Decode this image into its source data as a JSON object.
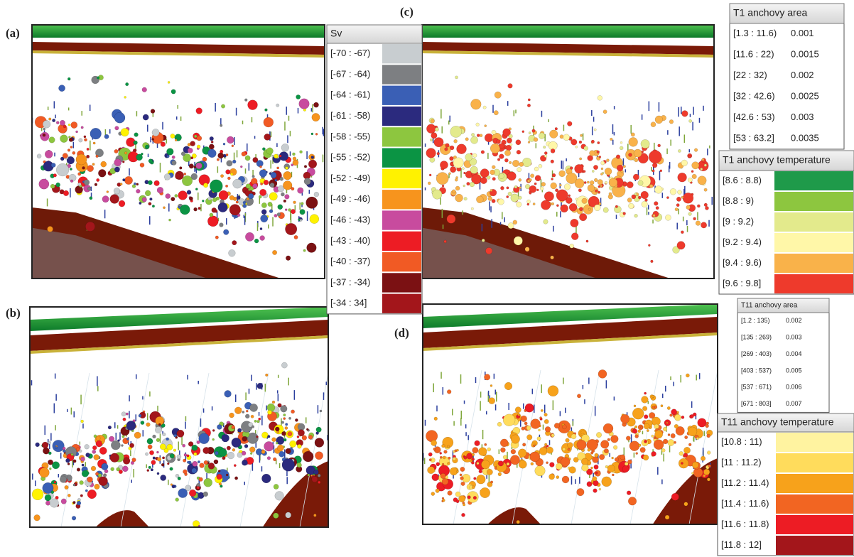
{
  "panel_labels": [
    "(a)",
    "(b)",
    "(c)",
    "(d)"
  ],
  "sv_legend": {
    "title": "Sv",
    "rows": [
      {
        "label": "[-70 : -67)",
        "color": "#c8cdd0"
      },
      {
        "label": "[-67 : -64)",
        "color": "#7d7f82"
      },
      {
        "label": "[-64 : -61)",
        "color": "#3a5fb5"
      },
      {
        "label": "[-61 : -58)",
        "color": "#2b2a7e"
      },
      {
        "label": "[-58 : -55)",
        "color": "#8dc63f"
      },
      {
        "label": "[-55 : -52)",
        "color": "#0b9444"
      },
      {
        "label": "[-52 : -49)",
        "color": "#fff200"
      },
      {
        "label": "[-49 : -46)",
        "color": "#f7941d"
      },
      {
        "label": "[-46 : -43)",
        "color": "#c84b9e"
      },
      {
        "label": "[-43 : -40)",
        "color": "#ed1c24"
      },
      {
        "label": "[-40 : -37)",
        "color": "#f15a24"
      },
      {
        "label": "[-37 : -34)",
        "color": "#7b1113"
      },
      {
        "label": "[-34 : 34]",
        "color": "#a3161b"
      }
    ]
  },
  "t1_area": {
    "title": "T1 anchovy area",
    "rows": [
      {
        "range": "[1.3 : 11.6)",
        "value": 0.001
      },
      {
        "range": "[11.6 : 22)",
        "value": 0.0015
      },
      {
        "range": "[22 : 32)",
        "value": 0.002
      },
      {
        "range": "[32 : 42.6)",
        "value": 0.0025
      },
      {
        "range": "[42.6 : 53)",
        "value": 0.003
      },
      {
        "range": "[53 : 63.2]",
        "value": 0.0035
      }
    ]
  },
  "t1_temperature": {
    "title": "T1 anchovy temperature",
    "rows": [
      {
        "label": "[8.6 : 8.8)",
        "color": "#1f9a4a"
      },
      {
        "label": "[8.8 : 9)",
        "color": "#8dc63f"
      },
      {
        "label": "[9 : 9.2)",
        "color": "#e3ea8c"
      },
      {
        "label": "[9.2 : 9.4)",
        "color": "#fff7a8"
      },
      {
        "label": "[9.4 : 9.6)",
        "color": "#f9b24a"
      },
      {
        "label": "[9.6 : 9.8]",
        "color": "#ee3a2c"
      }
    ]
  },
  "t11_area": {
    "title": "T11 anchovy area",
    "rows": [
      {
        "range": "[1.2 : 135)",
        "value": 0.002
      },
      {
        "range": "[135 : 269)",
        "value": 0.003
      },
      {
        "range": "[269 : 403)",
        "value": 0.004
      },
      {
        "range": "[403 : 537)",
        "value": 0.005
      },
      {
        "range": "[537 : 671)",
        "value": 0.006
      },
      {
        "range": "[671 : 803]",
        "value": 0.007
      }
    ]
  },
  "t11_temperature": {
    "title": "T11 anchovy temperature",
    "rows": [
      {
        "label": "[10.8 : 11)",
        "color": "#fff3a0"
      },
      {
        "label": "[11 : 11.2)",
        "color": "#ffdc5c"
      },
      {
        "label": "[11.2 : 11.4)",
        "color": "#f7a21b"
      },
      {
        "label": "[11.4 : 11.6)",
        "color": "#f26522"
      },
      {
        "label": "[11.6 : 11.8)",
        "color": "#ed1c24"
      },
      {
        "label": "[11.8 : 12]",
        "color": "#a3161b"
      }
    ]
  }
}
